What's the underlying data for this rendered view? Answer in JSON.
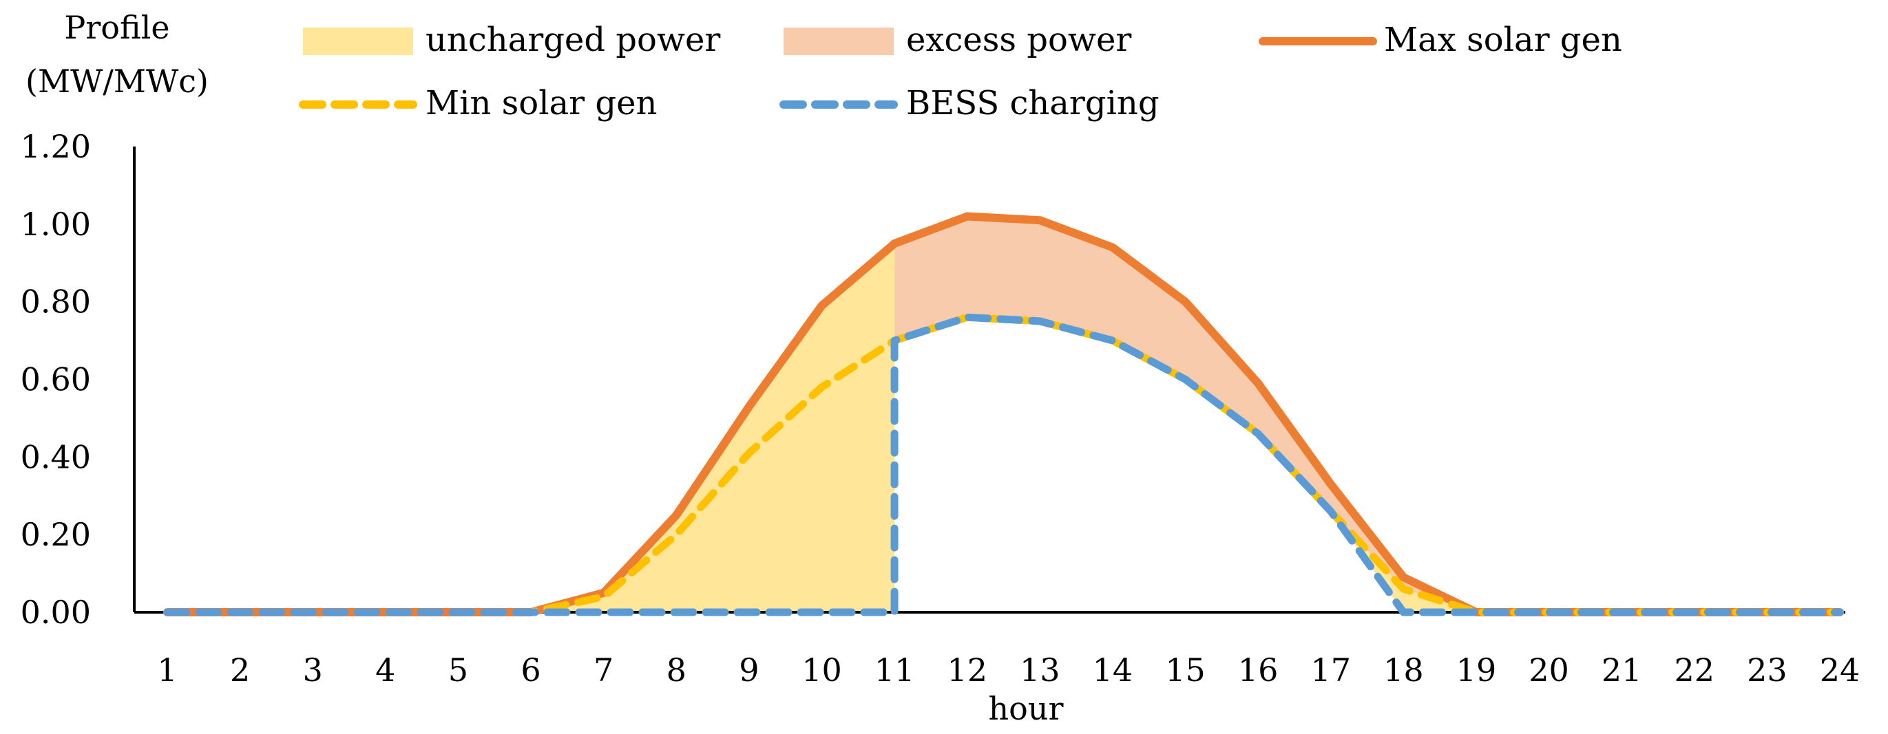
{
  "chart_data": {
    "type": "area",
    "title": "",
    "ylabel": [
      "Profile",
      "(MW/MWc)"
    ],
    "xlabel": "hour",
    "categories": [
      "1",
      "2",
      "3",
      "4",
      "5",
      "6",
      "7",
      "8",
      "9",
      "10",
      "11",
      "12",
      "13",
      "14",
      "15",
      "16",
      "17",
      "18",
      "19",
      "20",
      "21",
      "22",
      "23",
      "24"
    ],
    "ylim": [
      0,
      1.2
    ],
    "yticks": [
      "0.00",
      "0.20",
      "0.40",
      "0.60",
      "0.80",
      "1.00",
      "1.20"
    ],
    "grid": false,
    "legend_position": "top",
    "legend": [
      {
        "key": "uncharged",
        "label": "uncharged power",
        "kind": "area"
      },
      {
        "key": "excess",
        "label": "excess power",
        "kind": "area"
      },
      {
        "key": "max_solar",
        "label": "Max solar gen",
        "kind": "line"
      },
      {
        "key": "min_solar",
        "label": "Min solar gen",
        "kind": "dashed-line"
      },
      {
        "key": "bess",
        "label": "BESS charging",
        "kind": "dashed-line"
      }
    ],
    "series": [
      {
        "key": "max_solar",
        "name": "Max solar gen",
        "values": [
          0,
          0,
          0,
          0,
          0,
          0,
          0.05,
          0.25,
          0.53,
          0.79,
          0.95,
          1.02,
          1.01,
          0.94,
          0.8,
          0.59,
          0.33,
          0.09,
          0,
          0,
          0,
          0,
          0,
          0
        ]
      },
      {
        "key": "min_solar",
        "name": "Min solar gen",
        "values": [
          0,
          0,
          0,
          0,
          0,
          0,
          0.04,
          0.2,
          0.41,
          0.58,
          0.7,
          0.76,
          0.75,
          0.7,
          0.6,
          0.46,
          0.26,
          0.06,
          0,
          0,
          0,
          0,
          0,
          0
        ]
      },
      {
        "key": "bess",
        "name": "BESS charging",
        "values": [
          0,
          0,
          0,
          0,
          0,
          0,
          0,
          0,
          0,
          0,
          0,
          0.76,
          0.75,
          0.7,
          0.6,
          0.46,
          0.26,
          0,
          0,
          0,
          0,
          0,
          0,
          0
        ],
        "step_up": {
          "at_index": 10,
          "from": 0,
          "to": 0.7
        }
      }
    ],
    "colors": {
      "max_solar": "#ED7D31",
      "min_solar": "#FFC000",
      "bess": "#5B9BD5",
      "uncharged": "#FFE699",
      "excess": "#F8CBAD",
      "axis": "#000000"
    }
  }
}
